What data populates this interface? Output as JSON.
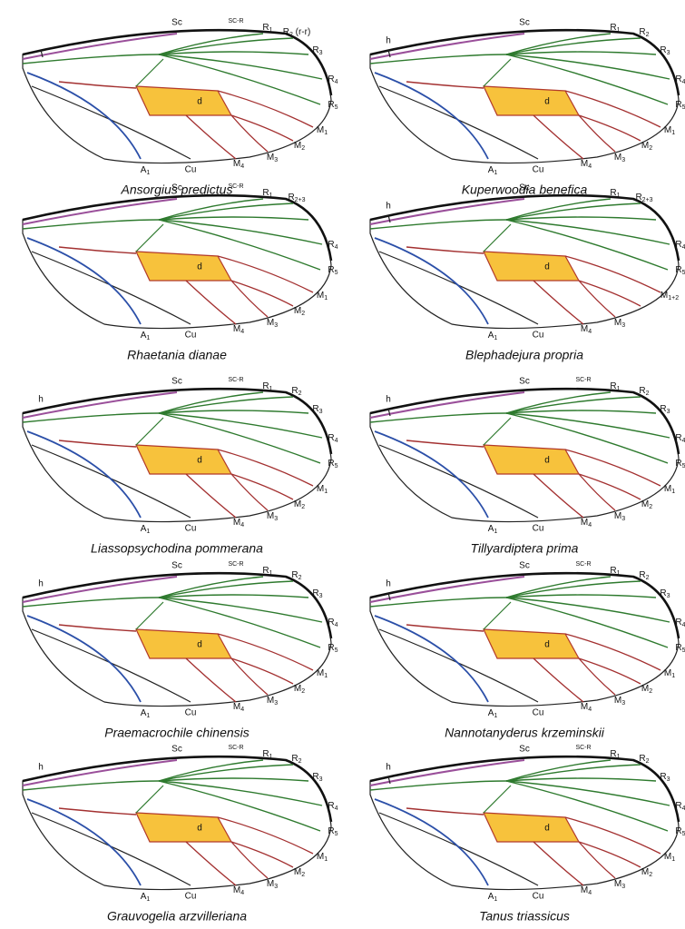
{
  "wings": [
    {
      "name": "Ansorgius predictus",
      "labels": [
        "Sc",
        "SC-R",
        "R1",
        "R2 (r-r)",
        "R3",
        "R4",
        "R5",
        "M1",
        "M2",
        "M3",
        "M4",
        "Cu",
        "A1",
        "d"
      ]
    },
    {
      "name": "Kuperwoodia benefica",
      "labels": [
        "h",
        "Sc",
        "R1",
        "R2",
        "R3",
        "R4",
        "R5",
        "M1",
        "M2",
        "M3",
        "M4",
        "Cu",
        "A1",
        "d"
      ]
    },
    {
      "name": "Rhaetania dianae",
      "labels": [
        "Sc",
        "SC-R",
        "R1",
        "R2+3",
        "R4",
        "R5",
        "M1",
        "M2",
        "M3",
        "M4",
        "Cu",
        "A1",
        "d"
      ]
    },
    {
      "name": "Blephadejura propria",
      "labels": [
        "h",
        "Sc",
        "R1",
        "R2+3",
        "R4",
        "R5",
        "M1+2",
        "M3",
        "M4",
        "Cu",
        "A1",
        "d"
      ]
    },
    {
      "name": "Liassopsychodina pommerana",
      "labels": [
        "h",
        "Sc",
        "SC-R",
        "R1",
        "R2",
        "R3",
        "R4",
        "R5",
        "M1",
        "M2",
        "M3",
        "M4",
        "Cu",
        "A1",
        "d"
      ]
    },
    {
      "name": "Tillyardiptera prima",
      "labels": [
        "h",
        "Sc",
        "SC-R",
        "R1",
        "R2",
        "R3",
        "R4",
        "R5",
        "M1",
        "M2",
        "M3",
        "M4",
        "Cu",
        "A1",
        "d"
      ]
    },
    {
      "name": "Praemacrochile chinensis",
      "labels": [
        "h",
        "Sc",
        "SC-R",
        "R1",
        "R2",
        "R3",
        "R4",
        "R5",
        "M1",
        "M2",
        "M3",
        "M4",
        "Cu",
        "A1",
        "d"
      ]
    },
    {
      "name": "Nannotanyderus krzeminskii",
      "labels": [
        "h",
        "Sc",
        "SC-R",
        "R1",
        "R2",
        "R3",
        "R4",
        "R5",
        "M1",
        "M2",
        "M3",
        "M4",
        "Cu",
        "A1",
        "d"
      ]
    },
    {
      "name": "Grauvogelia arzvilleriana",
      "labels": [
        "h",
        "Sc",
        "SC-R",
        "R1",
        "R2",
        "R3",
        "R4",
        "R5",
        "M1",
        "M2",
        "M3",
        "M4",
        "Cu",
        "A1",
        "d"
      ]
    },
    {
      "name": "Tanus triassicus",
      "labels": [
        "h",
        "Sc",
        "SC-R",
        "R1",
        "R2",
        "R3",
        "R4",
        "R5",
        "M1",
        "M2",
        "M3",
        "M4",
        "Cu",
        "A1",
        "d"
      ]
    }
  ]
}
